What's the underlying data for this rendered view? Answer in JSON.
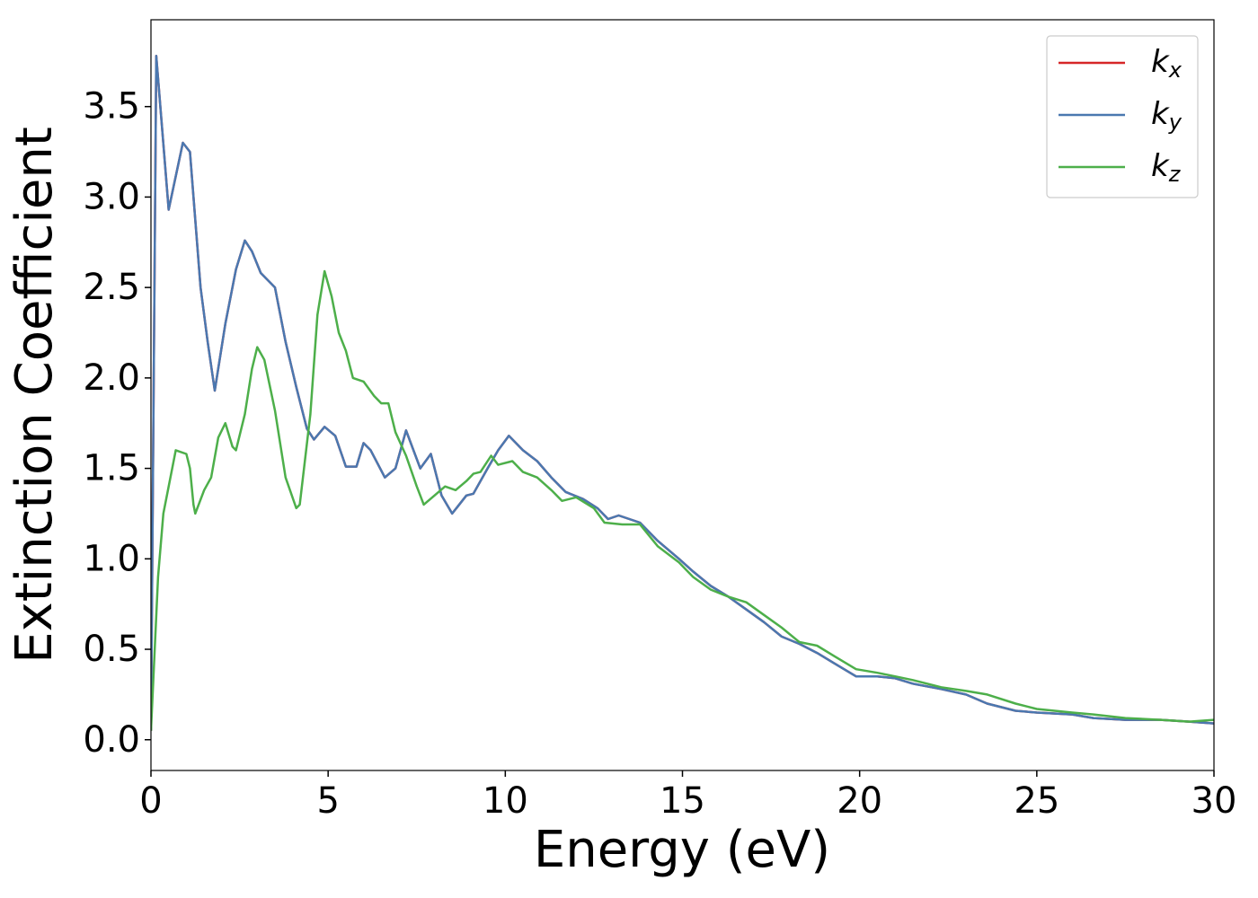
{
  "chart_data": {
    "type": "line",
    "xlabel": "Energy (eV)",
    "ylabel": "Extinction Coefficient",
    "xlim": [
      0,
      30
    ],
    "ylim": [
      -0.17,
      3.98
    ],
    "xticks": [
      0,
      5,
      10,
      15,
      20,
      25,
      30
    ],
    "yticks": [
      {
        "value": 0,
        "label": "0.0"
      },
      0.5,
      {
        "value": 1,
        "label": "1.0"
      },
      1.5,
      {
        "value": 2,
        "label": "2.0"
      },
      2.5,
      {
        "value": 3,
        "label": "3.0"
      },
      3.5
    ],
    "legend": "upper right",
    "series": [
      {
        "name": "kx",
        "color": "#d62728",
        "x": [
          0,
          0.15,
          0.5,
          0.9,
          1.1,
          1.4,
          1.6,
          1.8,
          2.1,
          2.4,
          2.65,
          2.85,
          3.1,
          3.5,
          3.8,
          4.1,
          4.4,
          4.6,
          4.9,
          5.2,
          5.5,
          5.8,
          6.0,
          6.2,
          6.6,
          6.9,
          7.2,
          7.6,
          7.9,
          8.2,
          8.5,
          8.9,
          9.1,
          9.5,
          9.8,
          10.1,
          10.5,
          10.9,
          11.3,
          11.7,
          12.2,
          12.6,
          12.9,
          13.2,
          13.8,
          14.3,
          14.9,
          15.3,
          15.8,
          16.3,
          16.8,
          17.3,
          17.8,
          18.3,
          18.8,
          19.3,
          19.9,
          20.5,
          21.0,
          21.5,
          22.3,
          23.0,
          23.6,
          24.4,
          25.0,
          26.0,
          26.6,
          27.5,
          28.5,
          29.3,
          30
        ],
        "values": [
          0.05,
          3.78,
          2.93,
          3.3,
          3.25,
          2.5,
          2.2,
          1.93,
          2.3,
          2.6,
          2.76,
          2.7,
          2.58,
          2.5,
          2.2,
          1.95,
          1.72,
          1.66,
          1.73,
          1.68,
          1.51,
          1.51,
          1.64,
          1.6,
          1.45,
          1.5,
          1.71,
          1.5,
          1.58,
          1.35,
          1.25,
          1.35,
          1.36,
          1.5,
          1.6,
          1.68,
          1.6,
          1.54,
          1.45,
          1.37,
          1.33,
          1.28,
          1.22,
          1.24,
          1.2,
          1.1,
          1.0,
          0.93,
          0.85,
          0.79,
          0.72,
          0.65,
          0.57,
          0.53,
          0.48,
          0.42,
          0.35,
          0.35,
          0.34,
          0.31,
          0.28,
          0.25,
          0.2,
          0.16,
          0.15,
          0.14,
          0.12,
          0.11,
          0.11,
          0.1,
          0.09
        ]
      },
      {
        "name": "ky",
        "color": "#4a78b0",
        "x": [
          0,
          0.15,
          0.5,
          0.9,
          1.1,
          1.4,
          1.6,
          1.8,
          2.1,
          2.4,
          2.65,
          2.85,
          3.1,
          3.5,
          3.8,
          4.1,
          4.4,
          4.6,
          4.9,
          5.2,
          5.5,
          5.8,
          6.0,
          6.2,
          6.6,
          6.9,
          7.2,
          7.6,
          7.9,
          8.2,
          8.5,
          8.9,
          9.1,
          9.5,
          9.8,
          10.1,
          10.5,
          10.9,
          11.3,
          11.7,
          12.2,
          12.6,
          12.9,
          13.2,
          13.8,
          14.3,
          14.9,
          15.3,
          15.8,
          16.3,
          16.8,
          17.3,
          17.8,
          18.3,
          18.8,
          19.3,
          19.9,
          20.5,
          21.0,
          21.5,
          22.3,
          23.0,
          23.6,
          24.4,
          25.0,
          26.0,
          26.6,
          27.5,
          28.5,
          29.3,
          30
        ],
        "values": [
          0.05,
          3.78,
          2.93,
          3.3,
          3.25,
          2.5,
          2.2,
          1.93,
          2.3,
          2.6,
          2.76,
          2.7,
          2.58,
          2.5,
          2.2,
          1.95,
          1.72,
          1.66,
          1.73,
          1.68,
          1.51,
          1.51,
          1.64,
          1.6,
          1.45,
          1.5,
          1.71,
          1.5,
          1.58,
          1.35,
          1.25,
          1.35,
          1.36,
          1.5,
          1.6,
          1.68,
          1.6,
          1.54,
          1.45,
          1.37,
          1.33,
          1.28,
          1.22,
          1.24,
          1.2,
          1.1,
          1.0,
          0.93,
          0.85,
          0.79,
          0.72,
          0.65,
          0.57,
          0.53,
          0.48,
          0.42,
          0.35,
          0.35,
          0.34,
          0.31,
          0.28,
          0.25,
          0.2,
          0.16,
          0.15,
          0.14,
          0.12,
          0.11,
          0.11,
          0.1,
          0.09
        ]
      },
      {
        "name": "kz",
        "color": "#4daf4a",
        "x": [
          0,
          0.2,
          0.35,
          0.5,
          0.7,
          1.0,
          1.1,
          1.2,
          1.25,
          1.5,
          1.7,
          1.9,
          2.1,
          2.3,
          2.4,
          2.65,
          2.85,
          3.0,
          3.2,
          3.5,
          3.8,
          4.1,
          4.2,
          4.5,
          4.7,
          4.9,
          5.1,
          5.3,
          5.5,
          5.7,
          6.0,
          6.3,
          6.5,
          6.7,
          6.9,
          7.2,
          7.5,
          7.7,
          8.0,
          8.3,
          8.6,
          8.9,
          9.1,
          9.3,
          9.6,
          9.8,
          10.2,
          10.5,
          10.9,
          11.3,
          11.6,
          12.0,
          12.5,
          12.8,
          13.3,
          13.8,
          14.3,
          14.9,
          15.3,
          15.8,
          16.3,
          16.8,
          17.3,
          17.8,
          18.3,
          18.8,
          19.3,
          19.9,
          20.5,
          21.0,
          21.5,
          22.3,
          23.0,
          23.6,
          24.4,
          25.0,
          26.0,
          26.6,
          27.5,
          28.5,
          29.3,
          30
        ],
        "values": [
          0.05,
          0.9,
          1.25,
          1.4,
          1.6,
          1.58,
          1.5,
          1.3,
          1.25,
          1.38,
          1.45,
          1.67,
          1.75,
          1.62,
          1.6,
          1.8,
          2.05,
          2.17,
          2.1,
          1.82,
          1.45,
          1.28,
          1.3,
          1.8,
          2.35,
          2.59,
          2.45,
          2.25,
          2.15,
          2.0,
          1.98,
          1.9,
          1.86,
          1.86,
          1.7,
          1.57,
          1.4,
          1.3,
          1.35,
          1.4,
          1.38,
          1.43,
          1.47,
          1.48,
          1.57,
          1.52,
          1.54,
          1.48,
          1.45,
          1.38,
          1.32,
          1.34,
          1.28,
          1.2,
          1.19,
          1.19,
          1.07,
          0.98,
          0.9,
          0.83,
          0.79,
          0.76,
          0.69,
          0.62,
          0.54,
          0.52,
          0.46,
          0.39,
          0.37,
          0.35,
          0.33,
          0.29,
          0.27,
          0.25,
          0.2,
          0.17,
          0.15,
          0.14,
          0.12,
          0.11,
          0.1,
          0.11
        ]
      }
    ]
  }
}
